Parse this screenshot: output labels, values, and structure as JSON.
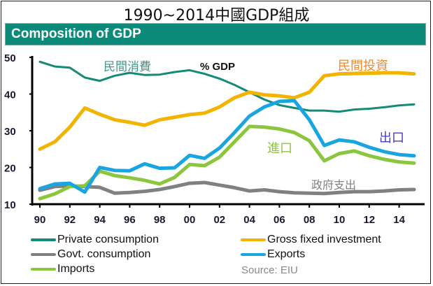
{
  "page_title": "1990~2014中國GDP組成",
  "banner_title": "Composition of GDP",
  "source": "Source: EIU",
  "chart_data": {
    "type": "line",
    "title": "Composition of GDP",
    "ylabel": "% GDP",
    "xlabel": "",
    "ylim": [
      10,
      50
    ],
    "yticks": [
      10,
      20,
      30,
      40,
      50
    ],
    "xlim": [
      1990,
      2015
    ],
    "xticks": [
      1990,
      1992,
      1994,
      1996,
      1998,
      2000,
      2002,
      2004,
      2006,
      2008,
      2010,
      2012,
      2014
    ],
    "xtick_labels": [
      "90",
      "92",
      "94",
      "96",
      "98",
      "00",
      "02",
      "04",
      "06",
      "08",
      "10",
      "12",
      "14"
    ],
    "x": [
      1990,
      1991,
      1992,
      1993,
      1994,
      1995,
      1996,
      1997,
      1998,
      1999,
      2000,
      2001,
      2002,
      2003,
      2004,
      2005,
      2006,
      2007,
      2008,
      2009,
      2010,
      2011,
      2012,
      2013,
      2014,
      2015
    ],
    "series": [
      {
        "name": "Private consumption",
        "label_cn": "民間消費",
        "color": "#148a78",
        "values": [
          48.8,
          47.5,
          47.2,
          44.5,
          43.6,
          45.0,
          45.8,
          45.2,
          45.3,
          46.0,
          46.5,
          45.5,
          44.2,
          42.5,
          40.5,
          38.5,
          37.0,
          36.2,
          35.5,
          35.5,
          35.2,
          35.8,
          36.0,
          36.4,
          36.9,
          37.2
        ]
      },
      {
        "name": "Gross fixed investment",
        "label_cn": "民間投資",
        "color": "#f2b400",
        "values": [
          25.0,
          27.0,
          31.0,
          36.2,
          34.5,
          33.0,
          32.3,
          31.5,
          33.0,
          33.7,
          34.4,
          34.8,
          36.5,
          39.0,
          40.5,
          39.8,
          39.5,
          39.0,
          40.5,
          45.0,
          45.5,
          45.6,
          45.7,
          45.8,
          45.8,
          45.5
        ]
      },
      {
        "name": "Govt. consumption",
        "label_cn": "政府支出",
        "color": "#7f8084",
        "values": [
          13.8,
          14.8,
          15.0,
          14.8,
          14.6,
          13.0,
          13.2,
          13.5,
          14.0,
          14.8,
          15.7,
          15.9,
          15.2,
          14.5,
          13.6,
          13.9,
          13.4,
          13.1,
          13.0,
          12.9,
          13.2,
          13.4,
          13.4,
          13.6,
          13.9,
          14.0
        ]
      },
      {
        "name": "Exports",
        "label_cn": "出口",
        "color": "#19a6e0",
        "values": [
          14.2,
          15.5,
          15.7,
          13.3,
          20.0,
          19.2,
          19.1,
          21.0,
          19.8,
          19.9,
          23.3,
          22.5,
          25.3,
          29.5,
          34.0,
          36.5,
          38.0,
          38.2,
          33.0,
          26.0,
          27.5,
          27.0,
          25.5,
          24.3,
          23.5,
          23.2
        ]
      },
      {
        "name": "Imports",
        "label_cn": "進口",
        "color": "#8cc63e",
        "values": [
          11.5,
          12.8,
          14.8,
          15.0,
          19.0,
          17.8,
          17.2,
          16.5,
          15.5,
          17.3,
          20.8,
          20.5,
          22.8,
          27.0,
          31.2,
          31.0,
          30.5,
          29.5,
          27.3,
          21.8,
          23.8,
          24.5,
          23.2,
          22.2,
          21.5,
          21.2
        ]
      }
    ],
    "legend": "bottom",
    "grid": false
  },
  "legend_items": [
    {
      "label": "Private consumption",
      "color": "#148a78"
    },
    {
      "label": "Gross fixed investment",
      "color": "#f2b400"
    },
    {
      "label": "Govt. consumption",
      "color": "#7f8084"
    },
    {
      "label": "Exports",
      "color": "#19a6e0"
    },
    {
      "label": "Imports",
      "color": "#8cc63e"
    }
  ],
  "annotations": {
    "private_consumption": {
      "text": "民間消費",
      "color": "#3e9a86"
    },
    "unit": {
      "text": "% GDP",
      "color": "#111111"
    },
    "investment": {
      "text": "民間投資",
      "color": "#f08a30"
    },
    "exports": {
      "text": "出口",
      "color": "#4a3bb8"
    },
    "imports": {
      "text": "進口",
      "color": "#8cc63e"
    },
    "govt": {
      "text": "政府支出",
      "color": "#7f8084"
    }
  }
}
